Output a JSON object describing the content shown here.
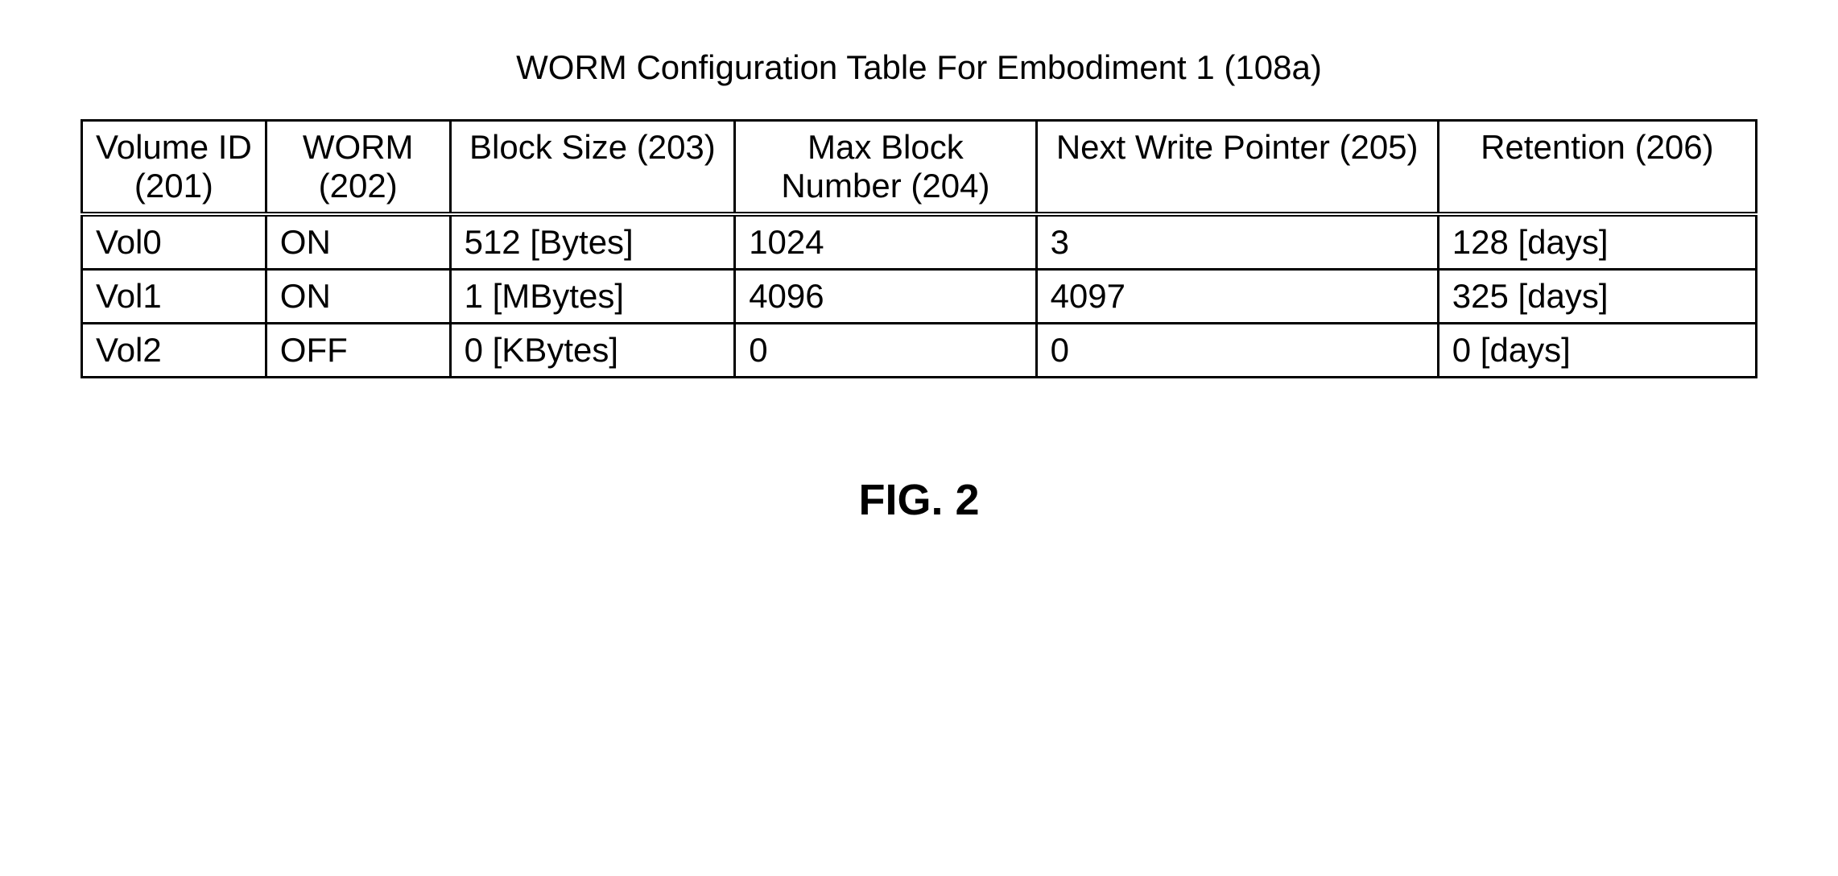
{
  "title": "WORM Configuration Table For Embodiment 1 (108a)",
  "figLabel": "FIG. 2",
  "columns": {
    "c0": "Volume ID (201)",
    "c1": "WORM (202)",
    "c2": "Block Size (203)",
    "c3": "Max Block Number (204)",
    "c4": "Next Write Pointer (205)",
    "c5": "Retention (206)"
  },
  "rows": [
    {
      "c0": "Vol0",
      "c1": "ON",
      "c2": "512 [Bytes]",
      "c3": "1024",
      "c4": "3",
      "c5": "128 [days]"
    },
    {
      "c0": "Vol1",
      "c1": "ON",
      "c2": "1 [MBytes]",
      "c3": "4096",
      "c4": "4097",
      "c5": "325 [days]"
    },
    {
      "c0": "Vol2",
      "c1": "OFF",
      "c2": "0 [KBytes]",
      "c3": "0",
      "c4": "0",
      "c5": "0 [days]"
    }
  ]
}
